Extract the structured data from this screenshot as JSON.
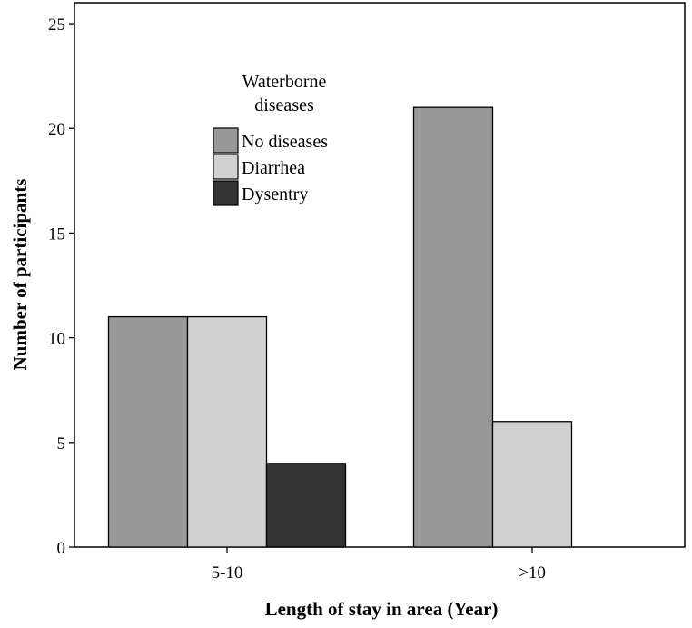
{
  "chart_data": {
    "type": "bar",
    "title": "",
    "xlabel": "Length of stay in area (Year)",
    "ylabel": "Number of participants",
    "categories": [
      "5-10",
      ">10"
    ],
    "series": [
      {
        "name": "No diseases",
        "values": [
          11,
          21
        ],
        "color": "#999999"
      },
      {
        "name": "Diarrhea",
        "values": [
          11,
          6
        ],
        "color": "#d1d1d1"
      },
      {
        "name": "Dysentry",
        "values": [
          4,
          0
        ],
        "color": "#333333"
      }
    ],
    "ylim": [
      0,
      26
    ],
    "yticks": [
      "0",
      "5",
      "10",
      "15",
      "20",
      "25"
    ],
    "grid": false,
    "legend": {
      "title_line1": "Waterborne",
      "title_line2": "diseases",
      "placement": "top-left"
    }
  }
}
